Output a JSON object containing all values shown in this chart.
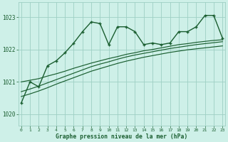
{
  "bg_color": "#cef0e8",
  "grid_color": "#9ecfc4",
  "line_color": "#1a5e30",
  "xlabel": "Graphe pression niveau de la mer (hPa)",
  "ylim": [
    1019.65,
    1023.45
  ],
  "yticks": [
    1020,
    1021,
    1022,
    1023
  ],
  "xlim": [
    -0.3,
    23.3
  ],
  "xticks": [
    0,
    1,
    2,
    3,
    4,
    5,
    6,
    7,
    8,
    9,
    10,
    11,
    12,
    13,
    14,
    15,
    16,
    17,
    18,
    19,
    20,
    21,
    22,
    23
  ],
  "hours": [
    0,
    1,
    2,
    3,
    4,
    5,
    6,
    7,
    8,
    9,
    10,
    11,
    12,
    13,
    14,
    15,
    16,
    17,
    18,
    19,
    20,
    21,
    22,
    23
  ],
  "pressure_main": [
    1020.35,
    1021.0,
    1020.85,
    1021.5,
    1021.65,
    1021.9,
    1022.2,
    1022.55,
    1022.85,
    1022.8,
    1022.15,
    1022.7,
    1022.7,
    1022.55,
    1022.15,
    1022.2,
    1022.15,
    1022.2,
    1022.55,
    1022.55,
    1022.7,
    1023.05,
    1023.05,
    1022.35
  ],
  "line1": [
    1021.0,
    1021.05,
    1021.1,
    1021.18,
    1021.25,
    1021.33,
    1021.42,
    1021.5,
    1021.58,
    1021.65,
    1021.72,
    1021.78,
    1021.85,
    1021.9,
    1021.96,
    1022.0,
    1022.05,
    1022.1,
    1022.15,
    1022.18,
    1022.22,
    1022.25,
    1022.28,
    1022.3
  ],
  "line2": [
    1020.7,
    1020.78,
    1020.87,
    1020.97,
    1021.07,
    1021.17,
    1021.27,
    1021.37,
    1021.47,
    1021.55,
    1021.62,
    1021.7,
    1021.77,
    1021.83,
    1021.88,
    1021.93,
    1021.98,
    1022.03,
    1022.07,
    1022.11,
    1022.15,
    1022.18,
    1022.21,
    1022.24
  ],
  "line3": [
    1020.55,
    1020.63,
    1020.72,
    1020.82,
    1020.93,
    1021.03,
    1021.13,
    1021.23,
    1021.33,
    1021.41,
    1021.49,
    1021.57,
    1021.64,
    1021.7,
    1021.76,
    1021.81,
    1021.86,
    1021.91,
    1021.95,
    1021.99,
    1022.02,
    1022.05,
    1022.08,
    1022.11
  ]
}
